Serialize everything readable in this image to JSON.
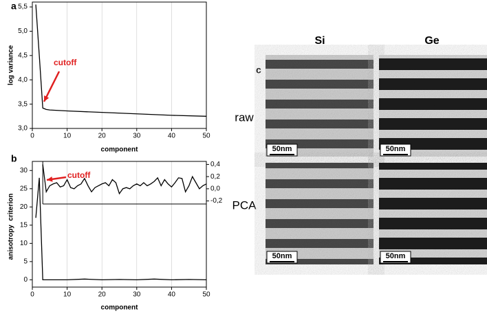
{
  "chart_data": [
    {
      "type": "line",
      "panel_label": "a",
      "xlabel": "component",
      "ylabel": "log variance",
      "annotation": "cutoff",
      "xlim": [
        0,
        50
      ],
      "xticks": [
        0,
        10,
        20,
        30,
        40,
        50
      ],
      "ylim": [
        3.0,
        5.6
      ],
      "yticks": [
        {
          "value": 3.0,
          "label": "3,0"
        },
        {
          "value": 3.5,
          "label": "3,5"
        },
        {
          "value": 4.0,
          "label": "4,0"
        },
        {
          "value": 4.5,
          "label": "4,5"
        },
        {
          "value": 5.0,
          "label": "5,0"
        },
        {
          "value": 5.5,
          "label": "5,5"
        }
      ],
      "grid": true,
      "series": [
        {
          "color": "#000000",
          "x": [
            1,
            2,
            3,
            4,
            5,
            10,
            20,
            30,
            40,
            50
          ],
          "values": [
            5.55,
            4.5,
            3.42,
            3.39,
            3.38,
            3.36,
            3.33,
            3.3,
            3.27,
            3.25
          ]
        }
      ]
    },
    {
      "type": "line",
      "panel_label": "b",
      "xlabel": "component",
      "ylabel": "anisotropy  criterion",
      "annotation": "cutoff",
      "xlim": [
        0,
        50
      ],
      "xticks": [
        0,
        10,
        20,
        30,
        40,
        50
      ],
      "ylim": [
        -2,
        32.5
      ],
      "yticks": [
        0,
        5,
        10,
        15,
        20,
        25,
        30
      ],
      "y2lim": [
        -0.25,
        0.45
      ],
      "y2ticks": [
        {
          "value": -0.2,
          "label": "-0,2"
        },
        {
          "value": 0.0,
          "label": "0,0"
        },
        {
          "value": 0.2,
          "label": "0,2"
        },
        {
          "value": 0.4,
          "label": "0,4"
        }
      ],
      "grid": true,
      "series": [
        {
          "color": "#000000",
          "x": [
            1,
            2,
            3,
            5,
            10,
            15,
            20,
            25,
            30,
            35,
            40,
            45,
            50
          ],
          "values": [
            17,
            28,
            0,
            0,
            0,
            0.2,
            0,
            0.1,
            0,
            0.2,
            0,
            0.1,
            0
          ]
        },
        {
          "color": "#000000",
          "axis": "y2",
          "x": [
            3,
            4,
            5,
            6,
            7,
            8,
            9,
            10,
            11,
            12,
            13,
            14,
            15,
            16,
            17,
            18,
            19,
            20,
            21,
            22,
            23,
            24,
            25,
            26,
            27,
            28,
            29,
            30,
            31,
            32,
            33,
            34,
            35,
            36,
            37,
            38,
            39,
            40,
            41,
            42,
            43,
            44,
            45,
            46,
            47,
            48,
            49,
            50
          ],
          "values": [
            0.4,
            -0.05,
            0.05,
            0.08,
            0.1,
            0.03,
            0.05,
            0.15,
            0.02,
            0.0,
            0.05,
            0.08,
            0.17,
            0.05,
            -0.05,
            0.02,
            0.05,
            0.08,
            0.1,
            0.05,
            0.15,
            0.1,
            -0.08,
            0.0,
            0.02,
            0.0,
            0.05,
            0.08,
            0.05,
            0.1,
            0.05,
            0.08,
            0.12,
            0.18,
            0.05,
            0.15,
            0.08,
            0.03,
            0.1,
            0.18,
            0.17,
            -0.05,
            0.05,
            0.2,
            0.1,
            0.0,
            0.05,
            0.08
          ]
        }
      ]
    }
  ],
  "panel_c": {
    "label": "c",
    "columns": [
      "Si",
      "Ge"
    ],
    "rows": [
      "raw",
      "PCA"
    ],
    "scale_bars": [
      "50nm",
      "50nm",
      "50nm",
      "50nm"
    ]
  }
}
